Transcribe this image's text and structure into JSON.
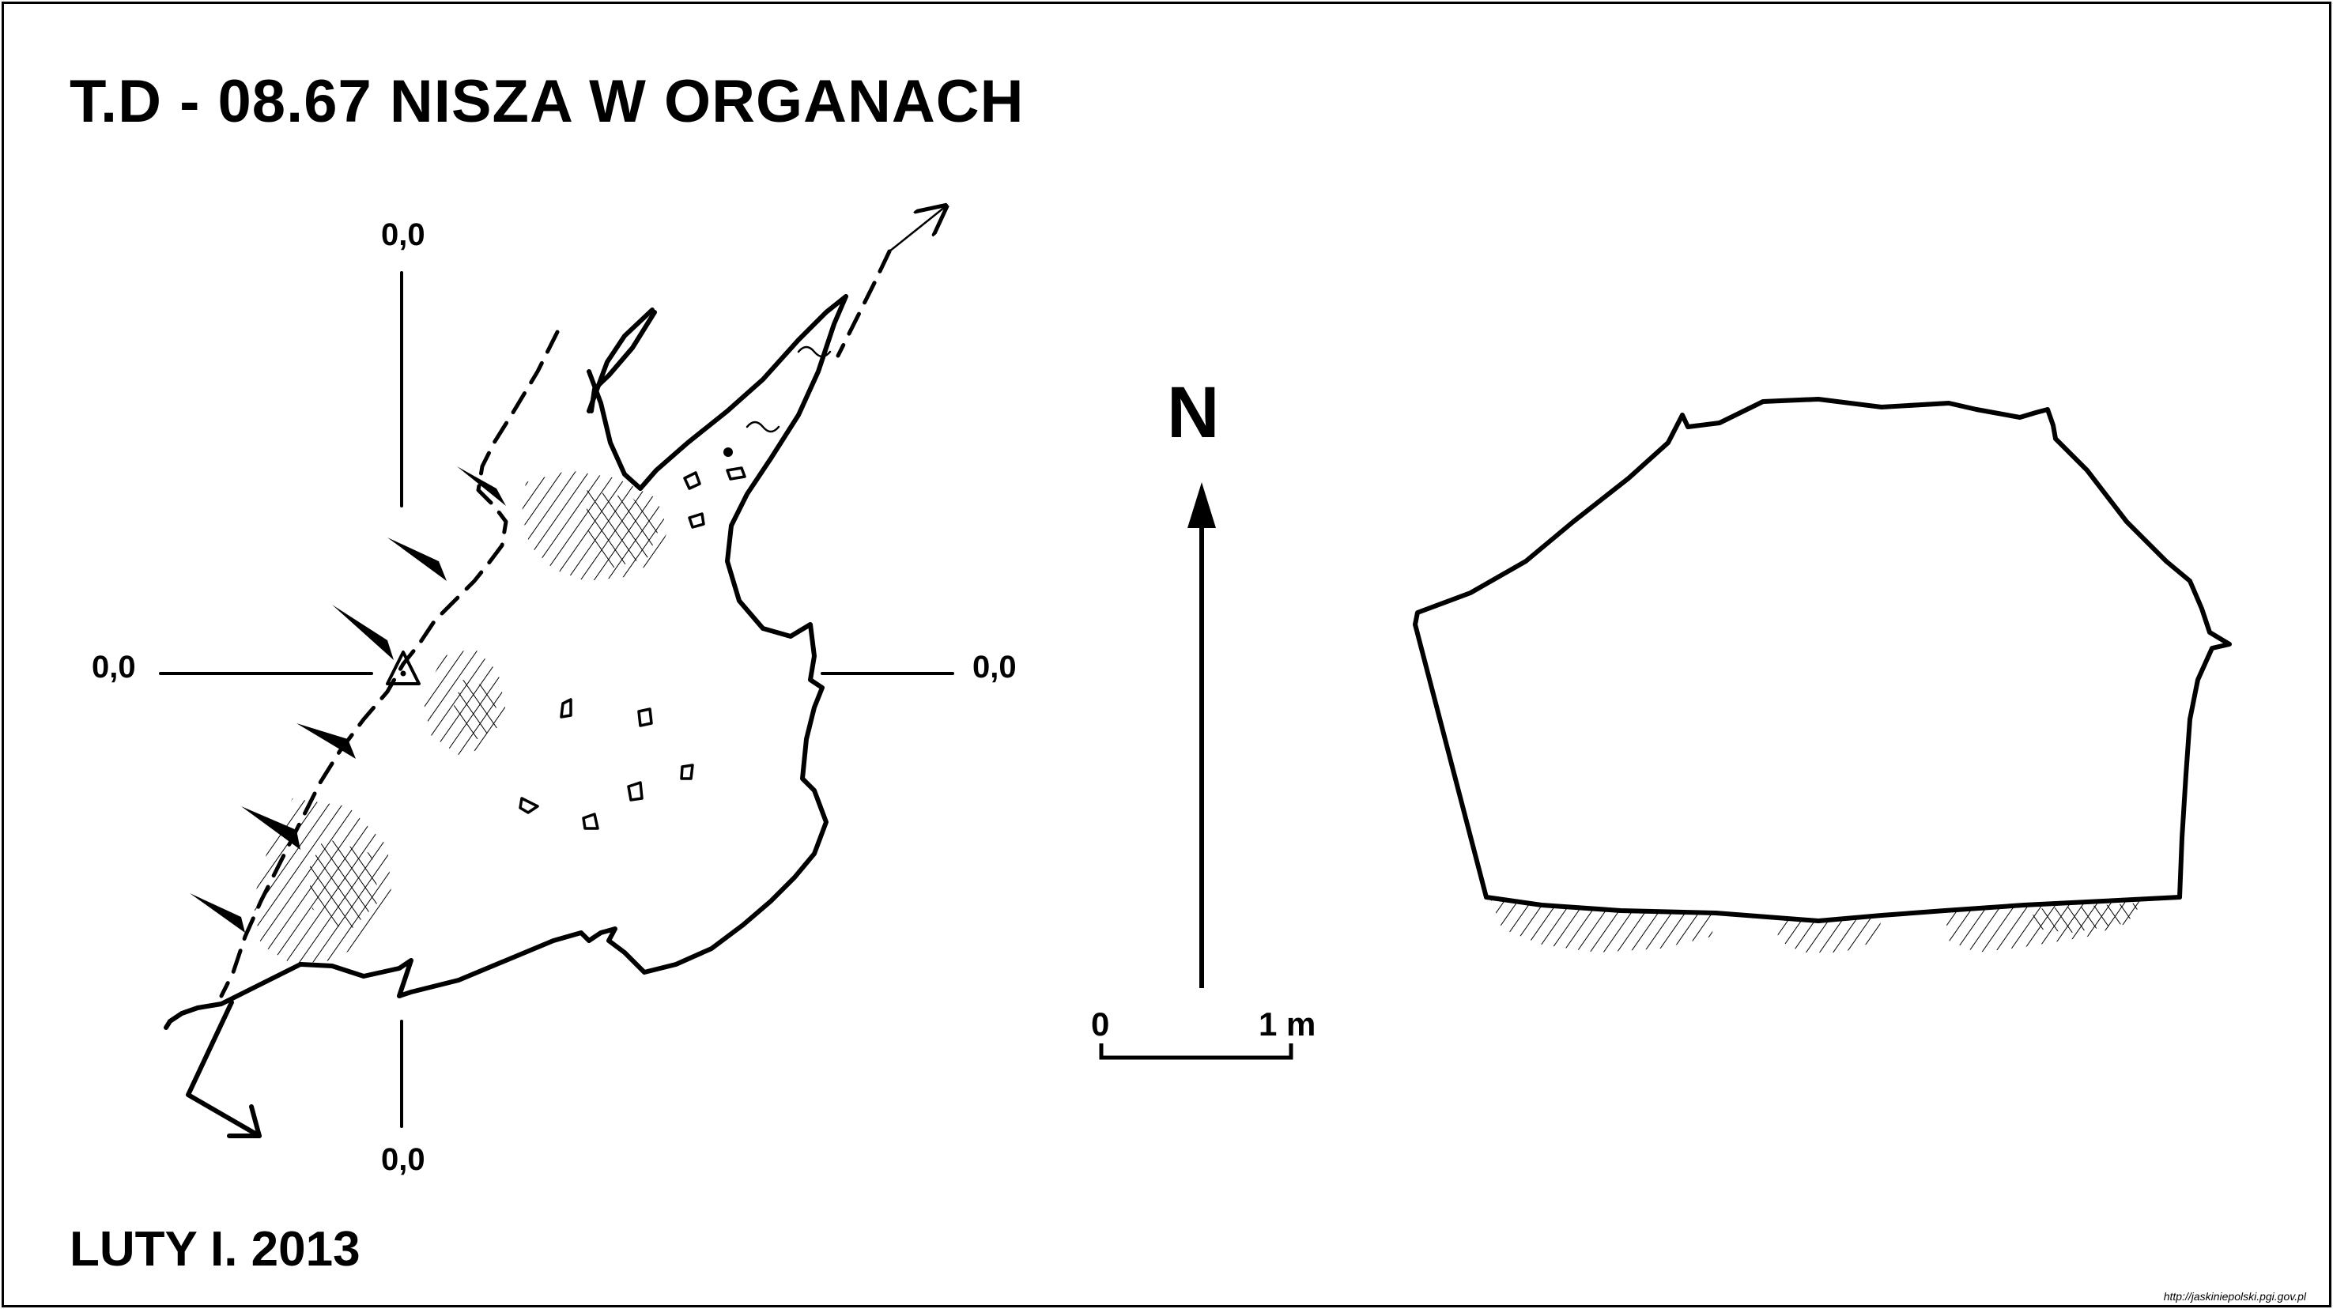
{
  "title": "T.D - 08.67  NISZA W ORGANACH",
  "date": "LUTY I. 2013",
  "source_url": "http://jaskiniepolski.pgi.gov.pl",
  "plan_view": {
    "section_labels": {
      "top": "0,0",
      "left": "0,0",
      "right": "0,0",
      "bottom": "0,0"
    }
  },
  "north_arrow": {
    "label": "N"
  },
  "scale_bar": {
    "start_label": "0",
    "end_label": "1 m"
  },
  "colors": {
    "ink": "#000000",
    "paper": "#ffffff"
  }
}
